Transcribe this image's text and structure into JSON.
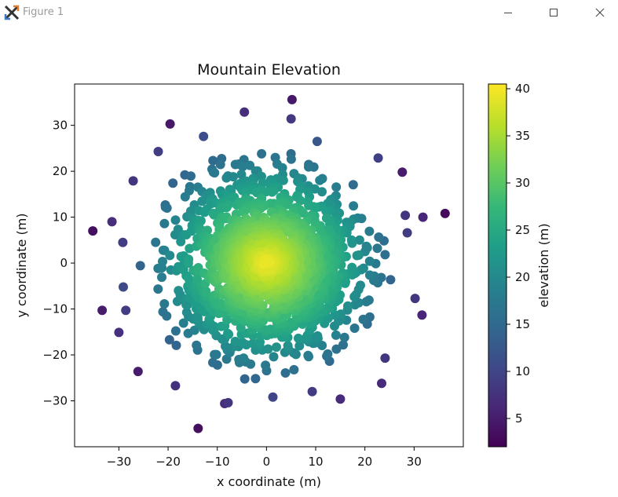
{
  "window": {
    "title": "Figure 1",
    "icon": "matplotlib-x-icon",
    "controls": [
      "minimize-icon",
      "maximize-icon",
      "close-icon"
    ]
  },
  "colors": {
    "viridis": [
      "#440154",
      "#482878",
      "#3e4989",
      "#31688e",
      "#26828e",
      "#1f9e89",
      "#35b779",
      "#6ece58",
      "#b5de2b",
      "#fde725"
    ]
  },
  "chart_data": {
    "type": "scatter",
    "title": "Mountain Elevation",
    "xlabel": "x coordinate (m)",
    "ylabel": "y coordinate (m)",
    "xlim": [
      -39,
      40
    ],
    "ylim": [
      -40,
      39
    ],
    "xticks": [
      -30,
      -20,
      -10,
      0,
      10,
      20,
      30
    ],
    "yticks": [
      -30,
      -20,
      -10,
      0,
      10,
      20,
      30
    ],
    "grid": false,
    "colormap": "viridis",
    "colorbar": {
      "label": "elevation (m)",
      "range": [
        2,
        40.5
      ],
      "ticks": [
        5,
        10,
        15,
        20,
        25,
        30,
        35,
        40
      ]
    },
    "elevation_model": {
      "peak_x": 0,
      "peak_y": 0,
      "peak_elevation": 40,
      "falloff_per_meter": 1.0
    },
    "outer_points": [
      {
        "x": 5.2,
        "y": 35.6,
        "elevation": 4.5
      },
      {
        "x": -4.5,
        "y": 32.9,
        "elevation": 7.0
      },
      {
        "x": 5.0,
        "y": 31.4,
        "elevation": 8.5
      },
      {
        "x": -19.6,
        "y": 30.3,
        "elevation": 4.5
      },
      {
        "x": -12.8,
        "y": 27.6,
        "elevation": 11.0
      },
      {
        "x": 10.3,
        "y": 26.5,
        "elevation": 12.5
      },
      {
        "x": 22.7,
        "y": 22.9,
        "elevation": 9.5
      },
      {
        "x": -22.0,
        "y": 24.3,
        "elevation": 9.0
      },
      {
        "x": 27.6,
        "y": 19.8,
        "elevation": 5.0
      },
      {
        "x": -27.1,
        "y": 17.9,
        "elevation": 8.0
      },
      {
        "x": 36.3,
        "y": 10.8,
        "elevation": 3.0
      },
      {
        "x": 31.8,
        "y": 10.0,
        "elevation": 6.0
      },
      {
        "x": 28.2,
        "y": 10.4,
        "elevation": 8.0
      },
      {
        "x": 28.6,
        "y": 6.6,
        "elevation": 9.0
      },
      {
        "x": -35.3,
        "y": 7.0,
        "elevation": 3.5
      },
      {
        "x": -31.4,
        "y": 9.0,
        "elevation": 7.0
      },
      {
        "x": -29.2,
        "y": 4.5,
        "elevation": 9.0
      },
      {
        "x": -29.1,
        "y": -5.2,
        "elevation": 10.5
      },
      {
        "x": 30.2,
        "y": -7.7,
        "elevation": 8.0
      },
      {
        "x": 31.6,
        "y": -11.3,
        "elevation": 6.0
      },
      {
        "x": -33.4,
        "y": -10.3,
        "elevation": 5.0
      },
      {
        "x": -28.6,
        "y": -10.3,
        "elevation": 9.0
      },
      {
        "x": -30.0,
        "y": -15.1,
        "elevation": 7.5
      },
      {
        "x": -26.1,
        "y": -23.6,
        "elevation": 5.0
      },
      {
        "x": 24.1,
        "y": -20.7,
        "elevation": 8.0
      },
      {
        "x": 23.4,
        "y": -26.2,
        "elevation": 6.5
      },
      {
        "x": -18.5,
        "y": -26.7,
        "elevation": 7.5
      },
      {
        "x": -13.9,
        "y": -36.0,
        "elevation": 3.5
      },
      {
        "x": -8.5,
        "y": -30.6,
        "elevation": 7.0
      },
      {
        "x": -7.8,
        "y": -30.4,
        "elevation": 8.0
      },
      {
        "x": 1.3,
        "y": -29.2,
        "elevation": 10.0
      },
      {
        "x": 15.0,
        "y": -29.6,
        "elevation": 6.5
      },
      {
        "x": 9.3,
        "y": -28.0,
        "elevation": 9.0
      }
    ]
  }
}
